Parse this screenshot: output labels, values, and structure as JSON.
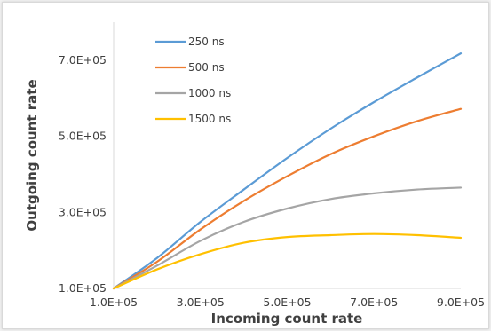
{
  "chart_data": {
    "type": "line",
    "title": "",
    "xlabel": "Incoming count rate",
    "ylabel": "Outgoing count rate",
    "xlim": [
      100000,
      900000
    ],
    "ylim": [
      100000,
      800000
    ],
    "x_ticks": [
      100000,
      300000,
      500000,
      700000,
      900000
    ],
    "x_tick_labels": [
      "1.0E+05",
      "3.0E+05",
      "5.0E+05",
      "7.0E+05",
      "9.0E+05"
    ],
    "y_ticks": [
      100000,
      300000,
      500000,
      700000
    ],
    "y_tick_labels": [
      "1.0E+05",
      "3.0E+05",
      "5.0E+05",
      "7.0E+05"
    ],
    "grid": false,
    "legend_position": "top-left",
    "x": [
      100000,
      200000,
      300000,
      400000,
      500000,
      600000,
      700000,
      800000,
      900000
    ],
    "series": [
      {
        "name": "250 ns",
        "color": "#5b9bd5",
        "values": [
          100000,
          180000,
          275000,
          360000,
          443000,
          520000,
          590000,
          655000,
          718000
        ]
      },
      {
        "name": "500 ns",
        "color": "#ed7d31",
        "values": [
          100000,
          170000,
          255000,
          330000,
          395000,
          453000,
          500000,
          540000,
          572000
        ]
      },
      {
        "name": "1000 ns",
        "color": "#a5a5a5",
        "values": [
          100000,
          160000,
          225000,
          275000,
          310000,
          335000,
          350000,
          360000,
          365000
        ]
      },
      {
        "name": "1500 ns",
        "color": "#ffc000",
        "values": [
          100000,
          150000,
          190000,
          220000,
          235000,
          240000,
          243000,
          240000,
          233000
        ]
      }
    ]
  }
}
